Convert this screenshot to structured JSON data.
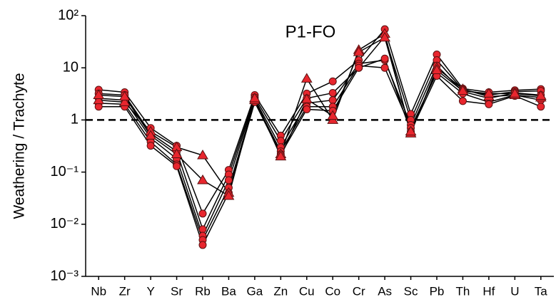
{
  "chart_data": {
    "type": "line",
    "title": "P1-FO",
    "y_label": "Weathering / Trachyte",
    "categories": [
      "Nb",
      "Zr",
      "Y",
      "Sr",
      "Rb",
      "Ba",
      "Ga",
      "Zn",
      "Cu",
      "Co",
      "Cr",
      "As",
      "Sc",
      "Pb",
      "Th",
      "Hf",
      "U",
      "Ta"
    ],
    "y_scale": "log",
    "ylim": [
      0.001,
      100
    ],
    "yticks": [
      {
        "value": 0.001,
        "label": "10⁻³"
      },
      {
        "value": 0.01,
        "label": "10⁻²"
      },
      {
        "value": 0.1,
        "label": "10⁻¹"
      },
      1,
      10,
      {
        "value": 100,
        "label": "10²"
      }
    ],
    "reference_line": 1,
    "series": [
      {
        "color": "#e8262e",
        "marker": "circle",
        "values": [
          3.8,
          3.4,
          0.7,
          0.32,
          0.016,
          0.11,
          3.0,
          0.5,
          3.2,
          5.5,
          14,
          55,
          1.3,
          18,
          4.0,
          3.4,
          3.7,
          3.9
        ]
      },
      {
        "color": "#e8262e",
        "marker": "circle",
        "values": [
          3.2,
          3.0,
          0.55,
          0.25,
          0.008,
          0.09,
          2.7,
          0.4,
          2.6,
          3.3,
          10,
          40,
          1.0,
          14,
          3.8,
          3.0,
          3.5,
          3.6
        ]
      },
      {
        "color": "#e8262e",
        "marker": "circle",
        "values": [
          2.6,
          2.4,
          0.45,
          0.18,
          0.006,
          0.07,
          2.5,
          0.3,
          2.1,
          2.4,
          12,
          14,
          0.8,
          11,
          3.5,
          2.6,
          3.3,
          3.0
        ]
      },
      {
        "color": "#e8262e",
        "marker": "circle",
        "values": [
          2.1,
          2.0,
          0.38,
          0.14,
          0.005,
          0.05,
          2.3,
          0.25,
          1.8,
          1.8,
          11,
          10,
          0.7,
          8,
          3.2,
          2.2,
          3.0,
          2.4
        ]
      },
      {
        "color": "#e8262e",
        "marker": "circle",
        "values": [
          1.8,
          1.8,
          0.32,
          0.13,
          0.004,
          0.04,
          2.2,
          0.22,
          1.6,
          1.5,
          10,
          15,
          0.6,
          7,
          2.3,
          2.0,
          2.9,
          1.8
        ]
      },
      {
        "color": "#e8262e",
        "marker": "triangle",
        "values": [
          2.4,
          2.2,
          0.6,
          0.3,
          0.21,
          0.04,
          2.4,
          0.22,
          6.2,
          1.0,
          22,
          45,
          0.55,
          10,
          3.9,
          2.8,
          3.0,
          2.7
        ]
      },
      {
        "color": "#e8262e",
        "marker": "triangle",
        "values": [
          3.0,
          2.8,
          0.5,
          0.22,
          0.07,
          0.035,
          2.6,
          0.2,
          2.5,
          1.2,
          20,
          38,
          0.6,
          9,
          3.6,
          3.2,
          3.2,
          2.9
        ]
      }
    ]
  }
}
